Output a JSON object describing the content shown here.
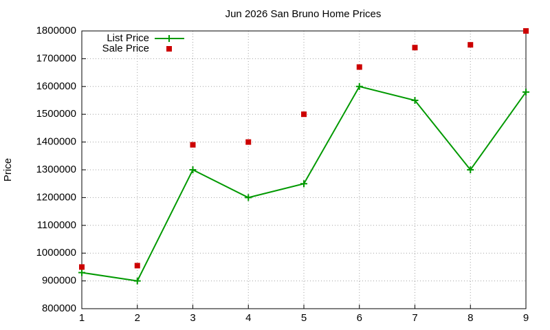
{
  "chart_data": {
    "type": "line",
    "title": "Jun 2026 San Bruno Home Prices",
    "y_label": "Price",
    "x": [
      1,
      2,
      3,
      4,
      5,
      6,
      7,
      8,
      9
    ],
    "series": [
      {
        "name": "List Price",
        "color": "#009900",
        "marker": "plus",
        "line": true,
        "values": [
          930000,
          900000,
          1300000,
          1200000,
          1250000,
          1600000,
          1550000,
          1300000,
          1580000
        ]
      },
      {
        "name": "Sale Price",
        "color": "#cc0000",
        "marker": "square",
        "line": false,
        "values": [
          950000,
          955000,
          1390000,
          1400000,
          1500000,
          1670000,
          1740000,
          1750000,
          1800000
        ]
      }
    ],
    "xlim": [
      1,
      9
    ],
    "xticks": [
      1,
      2,
      3,
      4,
      5,
      6,
      7,
      8,
      9
    ],
    "ylim": [
      800000,
      1800000
    ],
    "yticks": [
      800000,
      900000,
      1000000,
      1100000,
      1200000,
      1300000,
      1400000,
      1500000,
      1600000,
      1700000,
      1800000
    ],
    "grid": true,
    "legend": "top-left"
  }
}
